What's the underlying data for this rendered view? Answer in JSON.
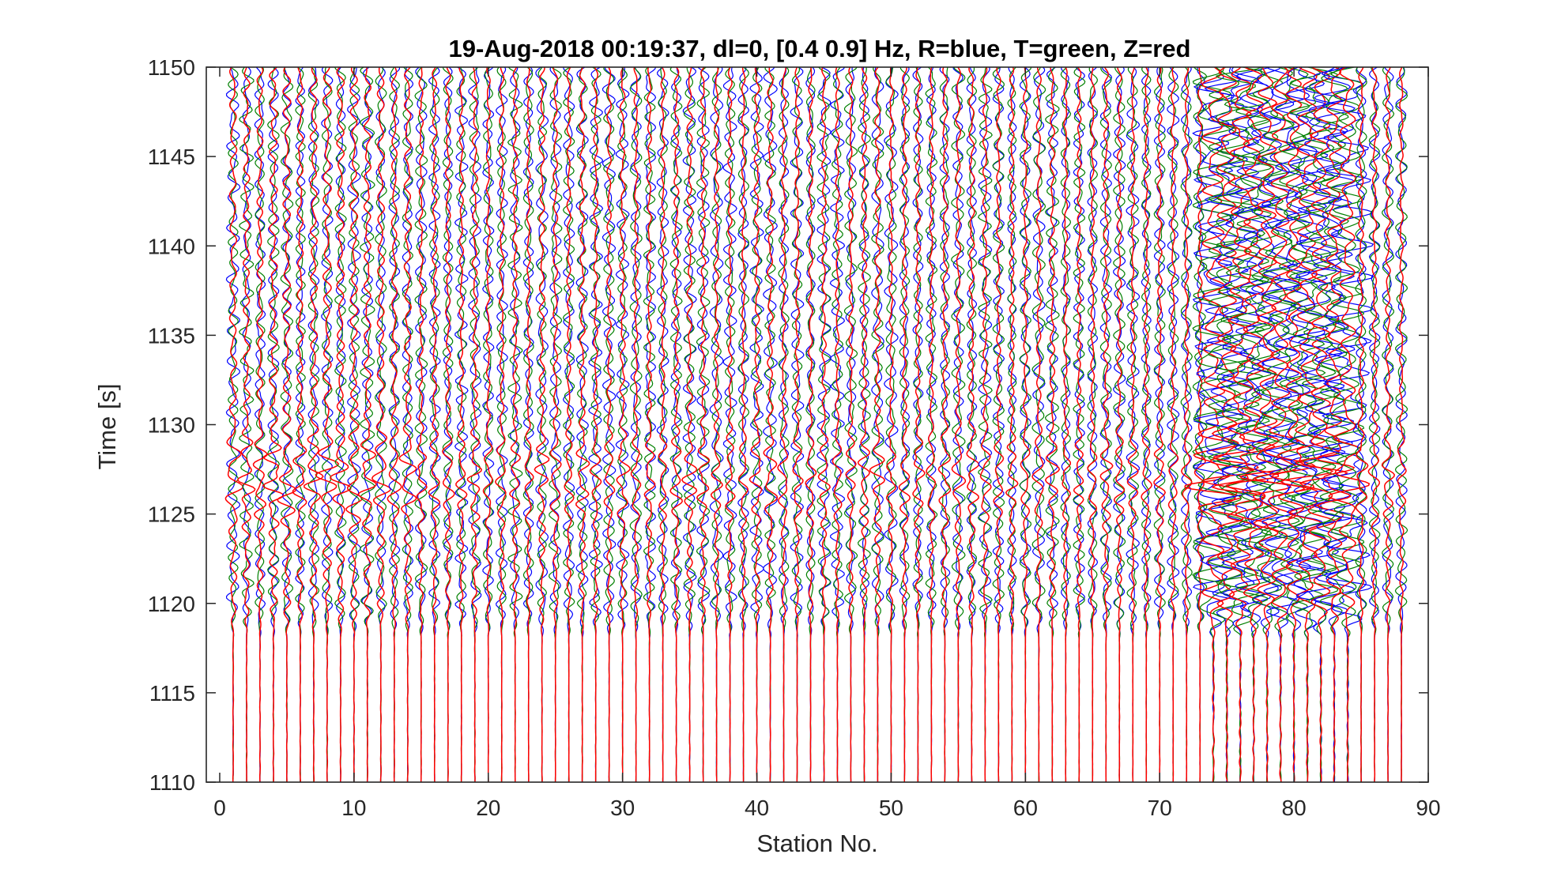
{
  "chart_data": {
    "type": "line",
    "title": "19-Aug-2018 00:19:37, dl=0, [0.4 0.9] Hz, R=blue, T=green, Z=red",
    "xlabel": "Station No.",
    "ylabel": "Time [s]",
    "xlim": [
      -1,
      90
    ],
    "ylim": [
      1110,
      1150
    ],
    "xticks": [
      0,
      10,
      20,
      30,
      40,
      50,
      60,
      70,
      80,
      90
    ],
    "yticks": [
      1110,
      1115,
      1120,
      1125,
      1130,
      1135,
      1140,
      1145,
      1150
    ],
    "station_count": 88,
    "series": [
      {
        "component": "R",
        "color": "#0000ff"
      },
      {
        "component": "T",
        "color": "#008000"
      },
      {
        "component": "Z",
        "color": "#ff0000"
      }
    ],
    "quiet_before_time": 1118,
    "grid": false,
    "legend": "none"
  }
}
